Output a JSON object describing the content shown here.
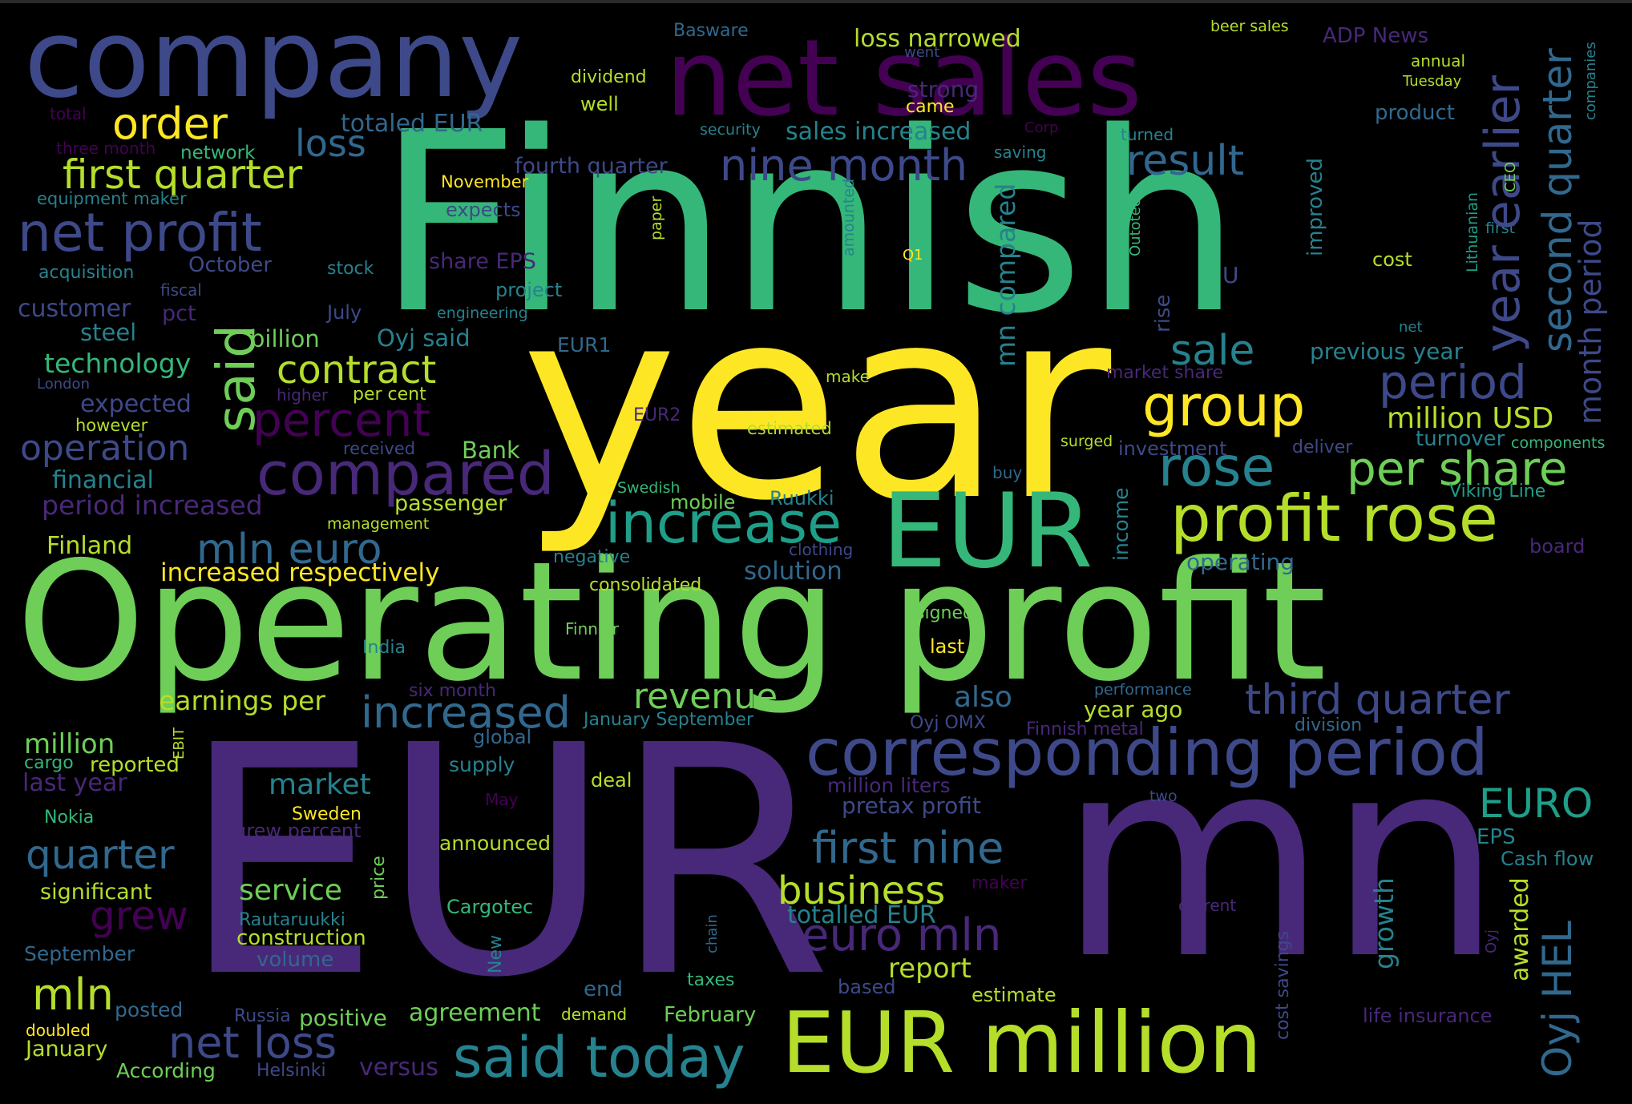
{
  "palette": {
    "background": "#000000",
    "viridis": [
      "#440154",
      "#482878",
      "#3e4989",
      "#31688e",
      "#26828e",
      "#1f9e89",
      "#35b779",
      "#6ece58",
      "#b5de2b",
      "#fde725"
    ]
  },
  "words": [
    {
      "text": "Finnish",
      "color": "#35b779"
    },
    {
      "text": "year",
      "color": "#fde725"
    },
    {
      "text": "Operating profit",
      "color": "#6ece58"
    },
    {
      "text": "EUR",
      "color": "#482878"
    },
    {
      "text": "mn",
      "color": "#482878"
    },
    {
      "text": "company",
      "color": "#3e4989"
    },
    {
      "text": "net sales",
      "color": "#440154"
    },
    {
      "text": "EUR million",
      "color": "#b5de2b"
    },
    {
      "text": "EUR",
      "color": "#35b779"
    },
    {
      "text": "corresponding period",
      "color": "#3e4989"
    },
    {
      "text": "profit rose",
      "color": "#b5de2b"
    },
    {
      "text": "compared",
      "color": "#482878"
    },
    {
      "text": "increase",
      "color": "#1f9e89"
    },
    {
      "text": "said today",
      "color": "#26828e"
    },
    {
      "text": "group",
      "color": "#fde725"
    },
    {
      "text": "rose",
      "color": "#26828e"
    },
    {
      "text": "per share",
      "color": "#6ece58"
    },
    {
      "text": "net profit",
      "color": "#3e4989"
    },
    {
      "text": "first quarter",
      "color": "#b5de2b"
    },
    {
      "text": "nine month",
      "color": "#3e4989"
    },
    {
      "text": "percent",
      "color": "#440154"
    },
    {
      "text": "said",
      "color": "#6ece58"
    },
    {
      "text": "order",
      "color": "#fde725"
    },
    {
      "text": "third quarter",
      "color": "#3e4989"
    },
    {
      "text": "increased",
      "color": "#31688e"
    },
    {
      "text": "euro mln",
      "color": "#482878"
    },
    {
      "text": "first nine",
      "color": "#31688e"
    },
    {
      "text": "business",
      "color": "#b5de2b"
    },
    {
      "text": "net loss",
      "color": "#3e4989"
    },
    {
      "text": "mln euro",
      "color": "#31688e"
    },
    {
      "text": "contract",
      "color": "#b5de2b"
    },
    {
      "text": "result",
      "color": "#31688e"
    },
    {
      "text": "period",
      "color": "#3e4989"
    },
    {
      "text": "sale",
      "color": "#26828e"
    },
    {
      "text": "revenue",
      "color": "#6ece58"
    },
    {
      "text": "operation",
      "color": "#3e4989"
    },
    {
      "text": "quarter",
      "color": "#31688e"
    },
    {
      "text": "loss",
      "color": "#31688e"
    },
    {
      "text": "mln",
      "color": "#b5de2b"
    },
    {
      "text": "year earlier",
      "color": "#3e4989"
    },
    {
      "text": "second quarter",
      "color": "#31688e"
    },
    {
      "text": "month period",
      "color": "#3e4989"
    },
    {
      "text": "EURO",
      "color": "#1f9e89"
    },
    {
      "text": "Oyj HEL",
      "color": "#31688e"
    },
    {
      "text": "grew",
      "color": "#440154"
    },
    {
      "text": "market",
      "color": "#26828e"
    },
    {
      "text": "service",
      "color": "#6ece58"
    },
    {
      "text": "report",
      "color": "#b5de2b"
    },
    {
      "text": "million USD",
      "color": "#b5de2b"
    },
    {
      "text": "mn compared",
      "color": "#26828e"
    },
    {
      "text": "million",
      "color": "#6ece58"
    },
    {
      "text": "sales increased",
      "color": "#26828e"
    },
    {
      "text": "totaled EUR",
      "color": "#31688e"
    },
    {
      "text": "technology",
      "color": "#35b779"
    },
    {
      "text": "earnings per",
      "color": "#b5de2b"
    },
    {
      "text": "period increased",
      "color": "#482878"
    },
    {
      "text": "increased respectively",
      "color": "#fde725"
    },
    {
      "text": "also",
      "color": "#31688e"
    },
    {
      "text": "solution",
      "color": "#31688e"
    },
    {
      "text": "totalled EUR",
      "color": "#26828e"
    },
    {
      "text": "growth",
      "color": "#26828e"
    },
    {
      "text": "agreement",
      "color": "#6ece58"
    },
    {
      "text": "customer",
      "color": "#3e4989"
    },
    {
      "text": "steel",
      "color": "#26828e"
    },
    {
      "text": "billion",
      "color": "#6ece58"
    },
    {
      "text": "Oyj said",
      "color": "#26828e"
    },
    {
      "text": "expected",
      "color": "#3e4989"
    },
    {
      "text": "financial",
      "color": "#26828e"
    },
    {
      "text": "Finland",
      "color": "#b5de2b"
    },
    {
      "text": "passenger",
      "color": "#b5de2b"
    },
    {
      "text": "Bank",
      "color": "#6ece58"
    },
    {
      "text": "last year",
      "color": "#482878"
    },
    {
      "text": "reported",
      "color": "#b5de2b"
    },
    {
      "text": "significant",
      "color": "#b5de2b"
    },
    {
      "text": "September",
      "color": "#31688e"
    },
    {
      "text": "January",
      "color": "#b5de2b"
    },
    {
      "text": "According",
      "color": "#6ece58"
    },
    {
      "text": "posted",
      "color": "#31688e"
    },
    {
      "text": "versus",
      "color": "#482878"
    },
    {
      "text": "positive",
      "color": "#6ece58"
    },
    {
      "text": "construction",
      "color": "#b5de2b"
    },
    {
      "text": "volume",
      "color": "#31688e"
    },
    {
      "text": "Rautaruukki",
      "color": "#26828e"
    },
    {
      "text": "grew percent",
      "color": "#482878"
    },
    {
      "text": "Sweden",
      "color": "#fde725"
    },
    {
      "text": "Nokia",
      "color": "#35b779"
    },
    {
      "text": "year ago",
      "color": "#b5de2b"
    },
    {
      "text": "pretax profit",
      "color": "#3e4989"
    },
    {
      "text": "million liters",
      "color": "#482878"
    },
    {
      "text": "January September",
      "color": "#26828e"
    },
    {
      "text": "six month",
      "color": "#482878"
    },
    {
      "text": "Oyj OMX",
      "color": "#3e4989"
    },
    {
      "text": "Finnish metal",
      "color": "#482878"
    },
    {
      "text": "performance",
      "color": "#31688e"
    },
    {
      "text": "division",
      "color": "#31688e"
    },
    {
      "text": "operating",
      "color": "#31688e"
    },
    {
      "text": "turnover",
      "color": "#26828e"
    },
    {
      "text": "investment",
      "color": "#3e4989"
    },
    {
      "text": "deliver",
      "color": "#3e4989"
    },
    {
      "text": "components",
      "color": "#35b779"
    },
    {
      "text": "Viking Line",
      "color": "#1f9e89"
    },
    {
      "text": "board",
      "color": "#482878"
    },
    {
      "text": "Cash flow",
      "color": "#26828e"
    },
    {
      "text": "EPS",
      "color": "#26828e"
    },
    {
      "text": "awarded",
      "color": "#b5de2b"
    },
    {
      "text": "life insurance",
      "color": "#482878"
    },
    {
      "text": "cost savings",
      "color": "#3e4989"
    },
    {
      "text": "Oyj",
      "color": "#482878"
    },
    {
      "text": "estimate",
      "color": "#b5de2b"
    },
    {
      "text": "based",
      "color": "#3e4989"
    },
    {
      "text": "February",
      "color": "#6ece58"
    },
    {
      "text": "taxes",
      "color": "#35b779"
    },
    {
      "text": "demand",
      "color": "#b5de2b"
    },
    {
      "text": "end",
      "color": "#31688e"
    },
    {
      "text": "Russia",
      "color": "#3e4989"
    },
    {
      "text": "Helsinki",
      "color": "#3e4989"
    },
    {
      "text": "doubled",
      "color": "#fde725"
    },
    {
      "text": "New",
      "color": "#26828e"
    },
    {
      "text": "chain",
      "color": "#31688e"
    },
    {
      "text": "Cargotec",
      "color": "#35b779"
    },
    {
      "text": "announced",
      "color": "#b5de2b"
    },
    {
      "text": "deal",
      "color": "#b5de2b"
    },
    {
      "text": "supply",
      "color": "#26828e"
    },
    {
      "text": "global",
      "color": "#31688e"
    },
    {
      "text": "May",
      "color": "#440154"
    },
    {
      "text": "price",
      "color": "#6ece58"
    },
    {
      "text": "cargo",
      "color": "#35b779"
    },
    {
      "text": "EBIT",
      "color": "#b5de2b"
    },
    {
      "text": "maker",
      "color": "#440154"
    },
    {
      "text": "two",
      "color": "#3e4989"
    },
    {
      "text": "last",
      "color": "#fde725"
    },
    {
      "text": "signed",
      "color": "#6ece58"
    },
    {
      "text": "India",
      "color": "#26828e"
    },
    {
      "text": "Finnair",
      "color": "#6ece58"
    },
    {
      "text": "consolidated",
      "color": "#b5de2b"
    },
    {
      "text": "negative",
      "color": "#26828e"
    },
    {
      "text": "clothing",
      "color": "#3e4989"
    },
    {
      "text": "Ruukki",
      "color": "#26828e"
    },
    {
      "text": "mobile",
      "color": "#6ece58"
    },
    {
      "text": "Swedish",
      "color": "#35b779"
    },
    {
      "text": "management",
      "color": "#b5de2b"
    },
    {
      "text": "received",
      "color": "#3e4989"
    },
    {
      "text": "however",
      "color": "#b5de2b"
    },
    {
      "text": "London",
      "color": "#3e4989"
    },
    {
      "text": "higher",
      "color": "#482878"
    },
    {
      "text": "per cent",
      "color": "#b5de2b"
    },
    {
      "text": "EUR2",
      "color": "#482878"
    },
    {
      "text": "estimated",
      "color": "#b5de2b"
    },
    {
      "text": "buy",
      "color": "#31688e"
    },
    {
      "text": "income",
      "color": "#26828e"
    },
    {
      "text": "surged",
      "color": "#b5de2b"
    },
    {
      "text": "make",
      "color": "#b5de2b"
    },
    {
      "text": "market share",
      "color": "#482878"
    },
    {
      "text": "previous year",
      "color": "#26828e"
    },
    {
      "text": "net",
      "color": "#26828e"
    },
    {
      "text": "rise",
      "color": "#3e4989"
    },
    {
      "text": "U",
      "color": "#3e4989"
    },
    {
      "text": "EUR1",
      "color": "#31688e"
    },
    {
      "text": "pct",
      "color": "#482878"
    },
    {
      "text": "July",
      "color": "#3e4989"
    },
    {
      "text": "engineering",
      "color": "#26828e"
    },
    {
      "text": "project",
      "color": "#26828e"
    },
    {
      "text": "stock",
      "color": "#26828e"
    },
    {
      "text": "share EPS",
      "color": "#482878"
    },
    {
      "text": "acquisition",
      "color": "#26828e"
    },
    {
      "text": "October",
      "color": "#3e4989"
    },
    {
      "text": "fiscal",
      "color": "#3e4989"
    },
    {
      "text": "expects",
      "color": "#3e4989"
    },
    {
      "text": "November",
      "color": "#fde725"
    },
    {
      "text": "equipment maker",
      "color": "#26828e"
    },
    {
      "text": "network",
      "color": "#35b779"
    },
    {
      "text": "three month",
      "color": "#440154"
    },
    {
      "text": "total",
      "color": "#440154"
    },
    {
      "text": "fourth quarter",
      "color": "#3e4989"
    },
    {
      "text": "security",
      "color": "#26828e"
    },
    {
      "text": "saving",
      "color": "#26828e"
    },
    {
      "text": "Corp",
      "color": "#440154"
    },
    {
      "text": "came",
      "color": "#fde725"
    },
    {
      "text": "strong",
      "color": "#482878"
    },
    {
      "text": "well",
      "color": "#b5de2b"
    },
    {
      "text": "dividend",
      "color": "#b5de2b"
    },
    {
      "text": "Basware",
      "color": "#31688e"
    },
    {
      "text": "loss narrowed",
      "color": "#b5de2b"
    },
    {
      "text": "went",
      "color": "#3e4989"
    },
    {
      "text": "beer sales",
      "color": "#b5de2b"
    },
    {
      "text": "ADP News",
      "color": "#482878"
    },
    {
      "text": "annual",
      "color": "#b5de2b"
    },
    {
      "text": "Tuesday",
      "color": "#b5de2b"
    },
    {
      "text": "companies",
      "color": "#26828e"
    },
    {
      "text": "turned",
      "color": "#26828e"
    },
    {
      "text": "product",
      "color": "#31688e"
    },
    {
      "text": "improved",
      "color": "#26828e"
    },
    {
      "text": "Outotec",
      "color": "#35b779"
    },
    {
      "text": "amounted",
      "color": "#26828e"
    },
    {
      "text": "Q1",
      "color": "#fde725"
    },
    {
      "text": "paper",
      "color": "#b5de2b"
    },
    {
      "text": "cost",
      "color": "#b5de2b"
    },
    {
      "text": "Lithuanian",
      "color": "#1f9e89"
    },
    {
      "text": "CEO",
      "color": "#6ece58"
    },
    {
      "text": "first",
      "color": "#26828e"
    },
    {
      "text": "current",
      "color": "#482878"
    }
  ]
}
